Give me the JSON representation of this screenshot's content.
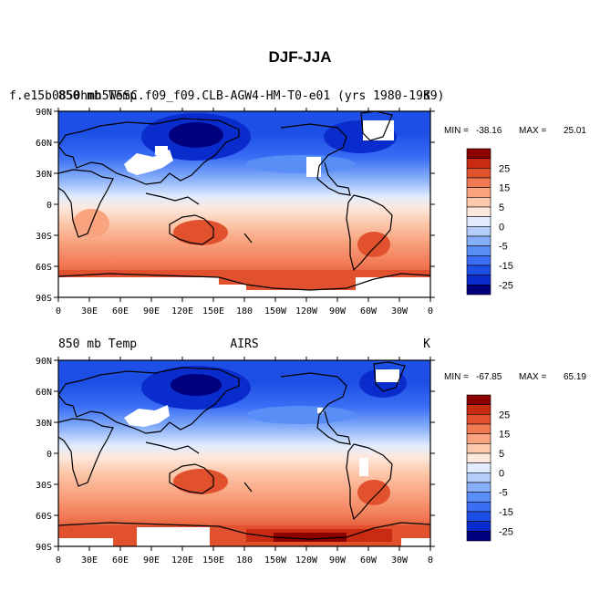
{
  "figure": {
    "title": "DJF-JJA"
  },
  "chart_data": [
    {
      "type": "heatmap",
      "panel": "model",
      "run_label": "f.e15b0850hmh5W5SC.f09_f09.CLB-AGW4-HM-T0-e01 (yrs 1980-1989)",
      "left_label": "850 mb Temp",
      "center_label": "",
      "units": "K",
      "stats": {
        "min_label": "MIN = ",
        "min": -38.16,
        "max_label": "MAX = ",
        "max": 25.01
      },
      "xticks": [
        "0",
        "30E",
        "60E",
        "90E",
        "120E",
        "150E",
        "180",
        "150W",
        "120W",
        "90W",
        "60W",
        "30W",
        "0"
      ],
      "yticks": [
        "90N",
        "60N",
        "30N",
        "0",
        "30S",
        "60S",
        "90S"
      ],
      "xlim": [
        0,
        360
      ],
      "ylim": [
        -90,
        90
      ],
      "colorbar": {
        "levels": [
          -30,
          -25,
          -20,
          -15,
          -10,
          -5,
          -2,
          0,
          2,
          5,
          10,
          15,
          20,
          25,
          30
        ],
        "labels": [
          "25",
          "15",
          "5",
          "0",
          "-5",
          "-15",
          "-25"
        ],
        "colors": [
          "#00007f",
          "#0a2ccc",
          "#1d4fe6",
          "#3b6ef5",
          "#5a8ef7",
          "#86aef9",
          "#b4cdfb",
          "#e2ecfe",
          "#fde8dc",
          "#fcc9ad",
          "#f9a37f",
          "#f17a55",
          "#e2512e",
          "#c82a12",
          "#8c0000"
        ]
      }
    },
    {
      "type": "heatmap",
      "panel": "observations",
      "run_label": "",
      "left_label": "850 mb Temp",
      "center_label": "AIRS",
      "units": "K",
      "stats": {
        "min_label": "MIN = ",
        "min": -67.85,
        "max_label": "MAX = ",
        "max": 65.19
      },
      "xticks": [
        "0",
        "30E",
        "60E",
        "90E",
        "120E",
        "150E",
        "180",
        "150W",
        "120W",
        "90W",
        "60W",
        "30W",
        "0"
      ],
      "yticks": [
        "90N",
        "60N",
        "30N",
        "0",
        "30S",
        "60S",
        "90S"
      ],
      "xlim": [
        0,
        360
      ],
      "ylim": [
        -90,
        90
      ],
      "colorbar": {
        "levels": [
          -30,
          -25,
          -20,
          -15,
          -10,
          -5,
          -2,
          0,
          2,
          5,
          10,
          15,
          20,
          25,
          30
        ],
        "labels": [
          "25",
          "15",
          "5",
          "0",
          "-5",
          "-15",
          "-25"
        ],
        "colors": [
          "#00007f",
          "#0a2ccc",
          "#1d4fe6",
          "#3b6ef5",
          "#5a8ef7",
          "#86aef9",
          "#b4cdfb",
          "#e2ecfe",
          "#fde8dc",
          "#fcc9ad",
          "#f9a37f",
          "#f17a55",
          "#e2512e",
          "#c82a12",
          "#8c0000"
        ]
      }
    }
  ]
}
